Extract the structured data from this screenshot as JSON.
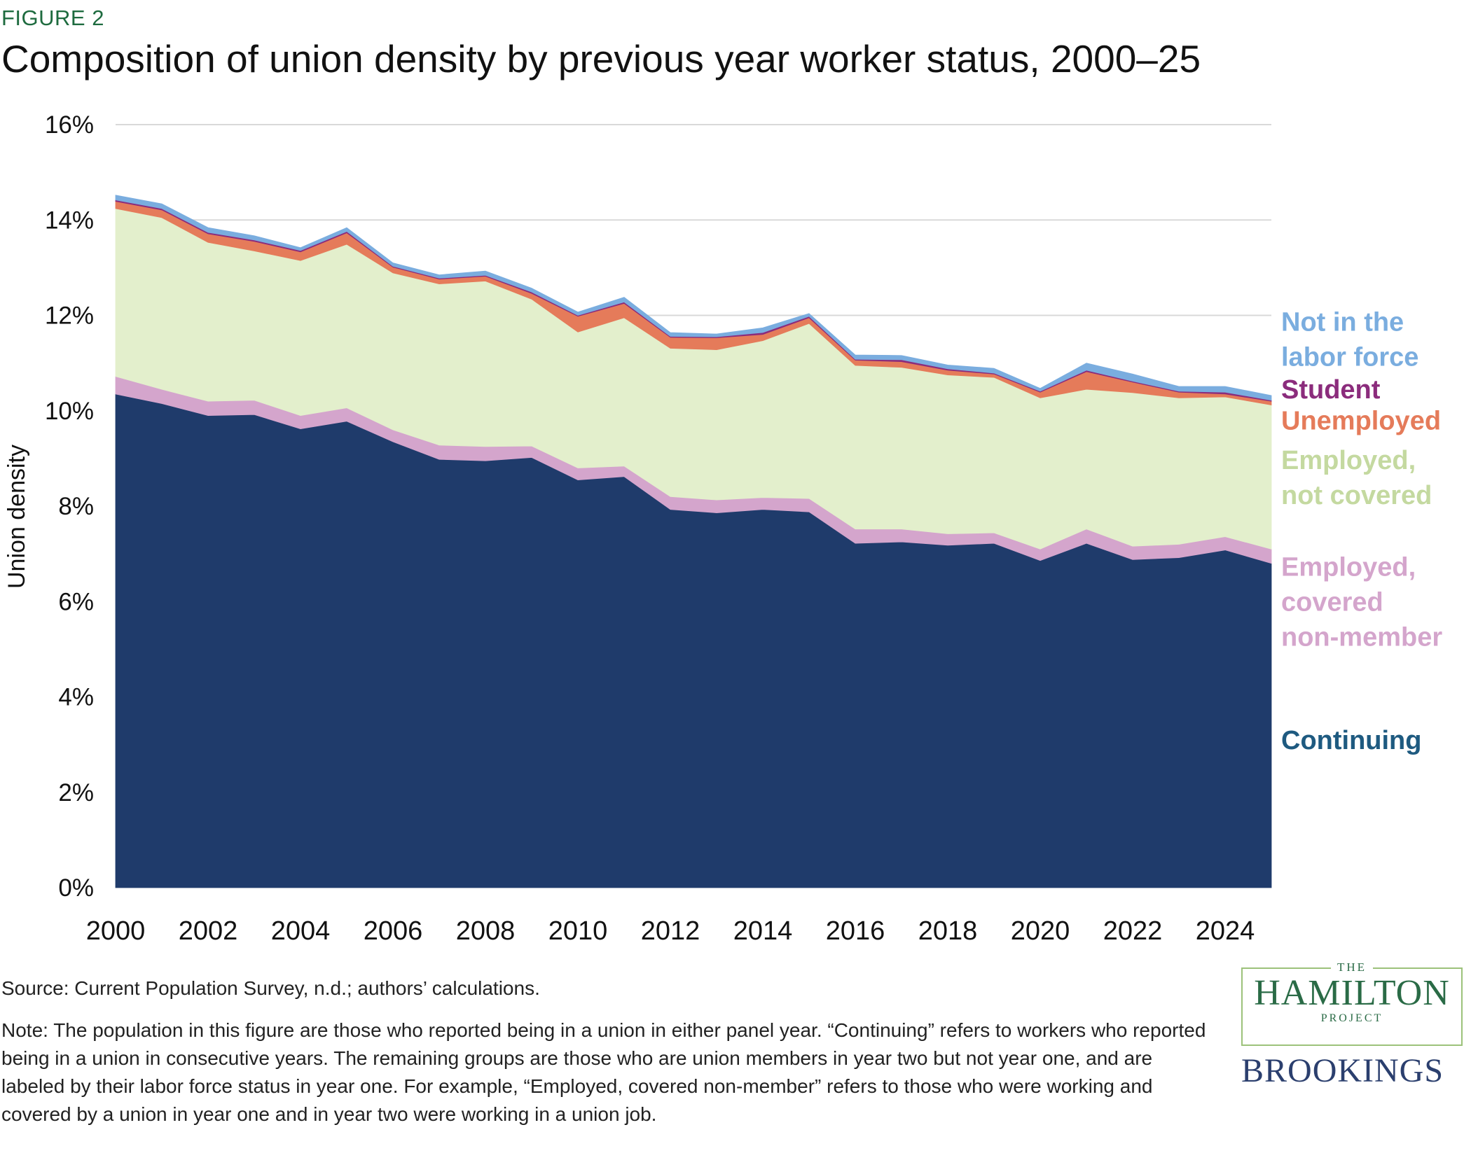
{
  "figure_label": "FIGURE 2",
  "title": "Composition of union density by previous year worker status, 2000–25",
  "source": "Source: Current Population Survey, n.d.; authors’ calculations.",
  "note": "Note: The population in this figure are those who reported being in a union in either panel year. “Continuing” refers to workers who reported being in a union in consecutive years. The remaining groups are those who are union members in year two but not year one, and are labeled by their labor force status in year one. For example, “Employed, covered non-member” refers to those who were working and covered by a union in year one and in year two were working in a union job.",
  "logos": {
    "hamilton_the": "THE",
    "hamilton_main": "HAMILTON",
    "hamilton_project": "PROJECT",
    "brookings": "BROOKINGS"
  },
  "chart_data": {
    "type": "area",
    "stacked": true,
    "ylabel": "Union density",
    "xlabel": "",
    "ylim": [
      0,
      16
    ],
    "y_ticks": [
      "0%",
      "2%",
      "4%",
      "6%",
      "8%",
      "10%",
      "12%",
      "14%",
      "16%"
    ],
    "y_tick_values": [
      0,
      2,
      4,
      6,
      8,
      10,
      12,
      14,
      16
    ],
    "x_ticks": [
      "2000",
      "2002",
      "2004",
      "2006",
      "2008",
      "2010",
      "2012",
      "2014",
      "2016",
      "2018",
      "2020",
      "2022",
      "2024"
    ],
    "x_tick_values": [
      2000,
      2002,
      2004,
      2006,
      2008,
      2010,
      2012,
      2014,
      2016,
      2018,
      2020,
      2022,
      2024
    ],
    "xlim": [
      2000,
      2025
    ],
    "grid": "horizontal",
    "legend": "direct-labels-right",
    "x": [
      2000,
      2001,
      2002,
      2003,
      2004,
      2005,
      2006,
      2007,
      2008,
      2009,
      2010,
      2011,
      2012,
      2013,
      2014,
      2015,
      2016,
      2017,
      2018,
      2019,
      2020,
      2021,
      2022,
      2023,
      2024,
      2025
    ],
    "series": [
      {
        "name": "Continuing",
        "label_lines": [
          "Continuing"
        ],
        "color": "#1f3b6b",
        "label_color": "#1e5a80",
        "label_y": 3.1,
        "values": [
          10.35,
          10.15,
          9.9,
          9.92,
          9.62,
          9.78,
          9.35,
          8.98,
          8.95,
          9.02,
          8.55,
          8.62,
          7.93,
          7.86,
          7.93,
          7.88,
          7.22,
          7.25,
          7.18,
          7.22,
          6.86,
          7.22,
          6.88,
          6.92,
          7.08,
          6.8
        ]
      },
      {
        "name": "Employed, covered non-member",
        "label_lines": [
          "Employed,",
          "covered",
          "non-member"
        ],
        "color": "#d4a5cc",
        "label_color": "#d4a5cc",
        "label_y": 6.0,
        "values": [
          0.37,
          0.3,
          0.3,
          0.3,
          0.28,
          0.28,
          0.25,
          0.3,
          0.3,
          0.24,
          0.25,
          0.22,
          0.27,
          0.27,
          0.25,
          0.28,
          0.3,
          0.27,
          0.24,
          0.22,
          0.24,
          0.3,
          0.28,
          0.28,
          0.28,
          0.3
        ]
      },
      {
        "name": "Employed, not covered",
        "label_lines": [
          "Employed,",
          "not covered"
        ],
        "color": "#e3efcc",
        "label_color": "#c4d9a0",
        "label_y": 8.6,
        "values": [
          3.52,
          3.6,
          3.33,
          3.13,
          3.25,
          3.43,
          3.29,
          3.38,
          3.47,
          3.08,
          2.85,
          3.11,
          3.11,
          3.15,
          3.29,
          3.67,
          3.43,
          3.39,
          3.33,
          3.26,
          3.17,
          2.93,
          3.22,
          3.07,
          2.93,
          3.02
        ]
      },
      {
        "name": "Unemployed",
        "label_lines": [
          "Unemployed"
        ],
        "color": "#e57b5a",
        "label_color": "#e57b5a",
        "label_y": 9.8,
        "values": [
          0.15,
          0.16,
          0.18,
          0.2,
          0.18,
          0.24,
          0.12,
          0.1,
          0.1,
          0.12,
          0.33,
          0.3,
          0.23,
          0.25,
          0.13,
          0.12,
          0.11,
          0.12,
          0.1,
          0.07,
          0.12,
          0.37,
          0.22,
          0.12,
          0.06,
          0.08
        ]
      },
      {
        "name": "Student",
        "label_lines": [
          "Student"
        ],
        "color": "#8b2c7c",
        "label_color": "#8b2c7c",
        "label_y": 10.45,
        "values": [
          0.03,
          0.03,
          0.03,
          0.03,
          0.03,
          0.03,
          0.02,
          0.02,
          0.02,
          0.03,
          0.02,
          0.03,
          0.02,
          0.02,
          0.04,
          0.03,
          0.02,
          0.04,
          0.03,
          0.02,
          0.02,
          0.03,
          0.02,
          0.02,
          0.04,
          0.02
        ]
      },
      {
        "name": "Not in the labor force",
        "label_lines": [
          "Not in the",
          "labor force"
        ],
        "color": "#7aaddf",
        "label_color": "#7aaddf",
        "label_y": 11.5,
        "values": [
          0.1,
          0.1,
          0.1,
          0.09,
          0.06,
          0.08,
          0.07,
          0.07,
          0.09,
          0.08,
          0.07,
          0.1,
          0.08,
          0.06,
          0.1,
          0.06,
          0.09,
          0.09,
          0.08,
          0.1,
          0.06,
          0.15,
          0.15,
          0.1,
          0.12,
          0.1
        ]
      }
    ]
  }
}
